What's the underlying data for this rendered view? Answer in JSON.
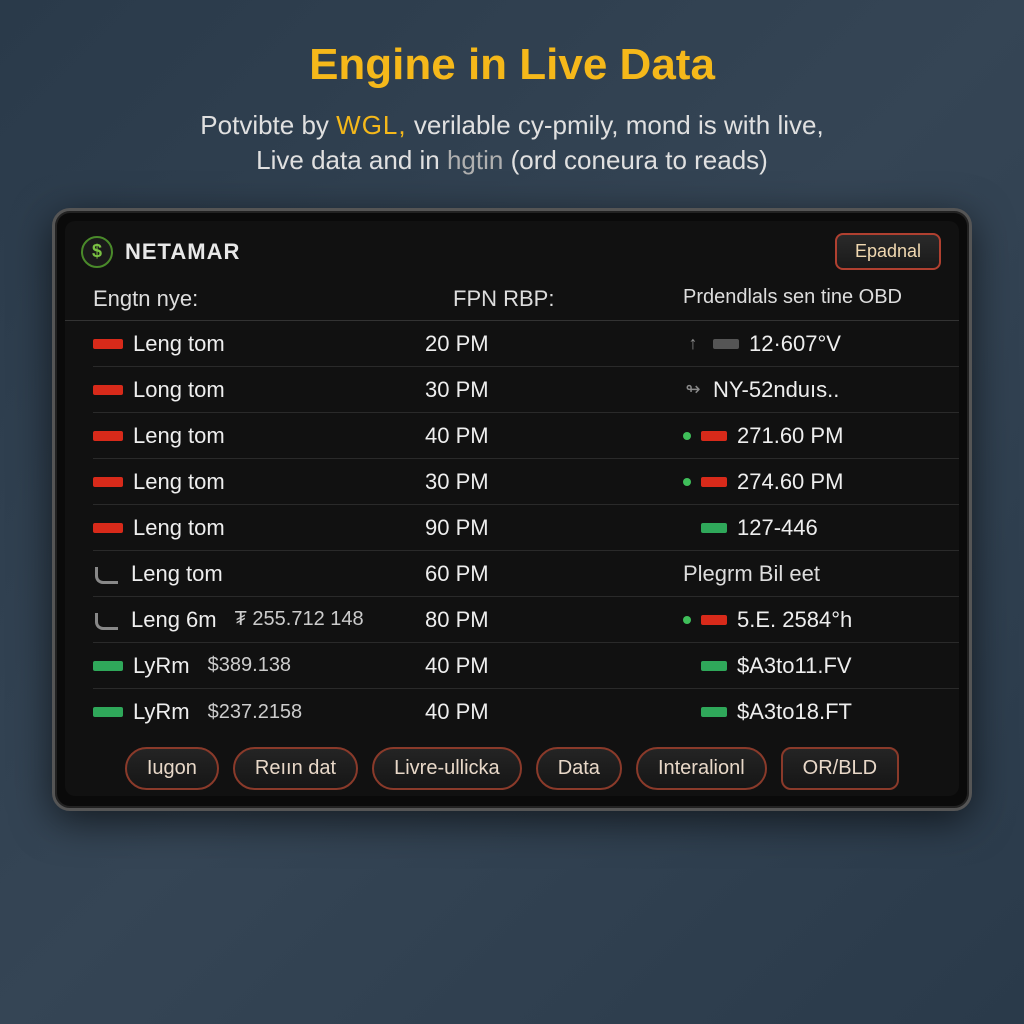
{
  "page": {
    "title": "Engine in Live Data",
    "subtitle_pre": "Potvibte by ",
    "subtitle_wgl": "WGL,",
    "subtitle_mid1": " verilable cy-pmily, mond is with live,",
    "subtitle_line2a": "Live data and in ",
    "subtitle_hgtin": "hgtin",
    "subtitle_line2b": " (ord coneura to reads)"
  },
  "device": {
    "brand": "NETAMAR",
    "brand_icon_glyph": "$",
    "header_button": "Epadnal",
    "columns": {
      "left": "Engtn nye:",
      "mid": "FPN RBP:",
      "right": "Prdendlals sen tine OBD"
    },
    "rows": [
      {
        "ind": "red",
        "label": "Leng tom",
        "mid": "20 PM"
      },
      {
        "ind": "red",
        "label": "Long tom",
        "mid": "30 PM"
      },
      {
        "ind": "red",
        "label": "Leng tom",
        "mid": "40 PM"
      },
      {
        "ind": "red",
        "label": "Leng tom",
        "mid": "30 PM"
      },
      {
        "ind": "red",
        "label": "Leng tom",
        "mid": "90 PM"
      },
      {
        "ind": "pipe",
        "label": "Leng tom",
        "mid": "60 PM"
      },
      {
        "ind": "pipe",
        "label": "Leng 6m",
        "extra": "₮ 255.712 148",
        "mid": "80 PM"
      },
      {
        "ind": "green",
        "label": "LyRm",
        "extra": "$389.138",
        "mid": "40 PM"
      },
      {
        "ind": "green",
        "label": "LyRm",
        "extra": "$237.2158",
        "mid": "40 PM"
      }
    ],
    "right_rows": [
      {
        "type": "iconval",
        "icon": "↑",
        "chip": "grey",
        "value": "12·607°V"
      },
      {
        "type": "iconval",
        "icon": "↬",
        "chip": "",
        "value": "NY-52nduıs.."
      },
      {
        "type": "dotchip",
        "dot": "green",
        "chip": "red",
        "value": "271.60 PM"
      },
      {
        "type": "dotchip",
        "dot": "green",
        "chip": "red",
        "value": "274.60 PM"
      },
      {
        "type": "chip",
        "chip": "green",
        "value": "127-446"
      },
      {
        "type": "section",
        "value": "Plegrm Bil eet"
      },
      {
        "type": "dotchip",
        "dot": "green",
        "chip": "red",
        "value": "5.E. 2584°h"
      },
      {
        "type": "chip",
        "chip": "green",
        "value": "$A3to11.FV"
      },
      {
        "type": "chip",
        "chip": "green",
        "value": "$A3to18.FT"
      }
    ],
    "bottom_buttons": [
      {
        "label": "Iugon",
        "shape": "round"
      },
      {
        "label": "Reıın dat",
        "shape": "round"
      },
      {
        "label": "Livre-ullicka",
        "shape": "round"
      },
      {
        "label": "Data",
        "shape": "round"
      },
      {
        "label": "Interalionl",
        "shape": "round"
      },
      {
        "label": "OR/BLD",
        "shape": "square"
      }
    ]
  },
  "colors": {
    "title": "#f5b81a",
    "subtitle": "#e0e0e0",
    "bg_grad_a": "#2a3a4a",
    "bg_grad_b": "#354555",
    "device_bg": "#0a0a0a",
    "row_border": "#2a2a2a",
    "ind_red": "#d82a1a",
    "ind_green": "#2fa85a",
    "button_border": "#8a3a2a"
  }
}
